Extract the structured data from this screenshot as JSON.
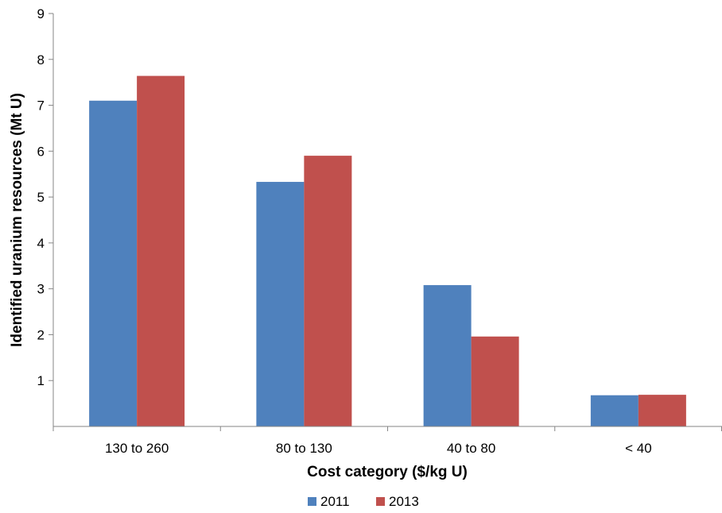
{
  "chart_data": {
    "type": "bar",
    "title": "",
    "xlabel": "Cost category ($/kg U)",
    "ylabel": "Identified uranium resources (Mt U)",
    "categories": [
      "130 to 260",
      "80 to 130",
      "40 to 80",
      "< 40"
    ],
    "series": [
      {
        "name": "2011",
        "color": "#4f81bd",
        "values": [
          7.1,
          5.33,
          3.08,
          0.68
        ]
      },
      {
        "name": "2013",
        "color": "#c0504d",
        "values": [
          7.64,
          5.9,
          1.96,
          0.69
        ]
      }
    ],
    "ylim": [
      0,
      9
    ],
    "yticks": [
      "1",
      "2",
      "3",
      "4",
      "5",
      "6",
      "7",
      "8",
      "9"
    ],
    "grid": false,
    "legend_position": "bottom"
  }
}
